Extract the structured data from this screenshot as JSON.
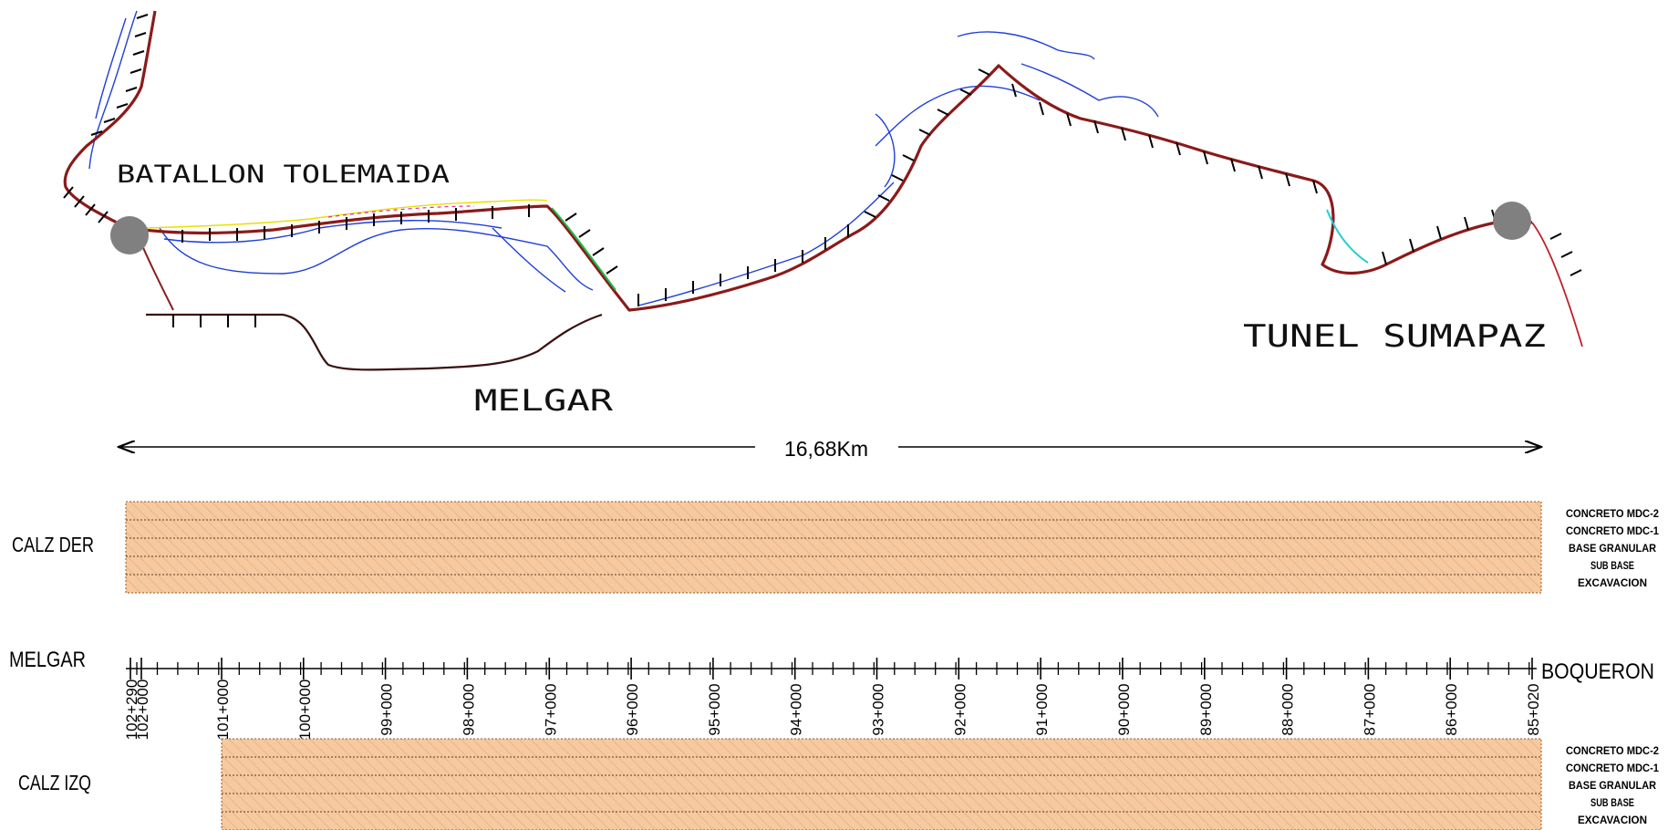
{
  "map": {
    "labels": {
      "batallon": "BATALLON TOLEMAIDA",
      "melgar": "MELGAR",
      "tunel": "TUNEL SUMAPAZ"
    },
    "distance": "16,68Km"
  },
  "sections": {
    "right": {
      "label": "CALZ DER",
      "layers": [
        "CONCRETO MDC-2",
        "CONCRETO MDC-1",
        "BASE GRANULAR",
        "SUB BASE",
        "EXCAVACION"
      ]
    },
    "left": {
      "label": "CALZ IZQ",
      "layers": [
        "CONCRETO MDC-2",
        "CONCRETO MDC-1",
        "BASE GRANULAR",
        "SUB BASE",
        "EXCAVACION"
      ]
    }
  },
  "scale": {
    "start_label": "MELGAR",
    "end_label": "BOQUERON",
    "stations": [
      "102+290",
      "102+000",
      "101+000",
      "100+000",
      "99+000",
      "98+000",
      "97+000",
      "96+000",
      "95+000",
      "94+000",
      "93+000",
      "92+000",
      "91+000",
      "90+000",
      "89+000",
      "88+000",
      "87+000",
      "86+000",
      "85+020"
    ]
  },
  "colors": {
    "road": "#8b1a1a",
    "river": "#1f3fd8",
    "layer_fill": "#f6c9a0",
    "endpoint": "#808080"
  }
}
